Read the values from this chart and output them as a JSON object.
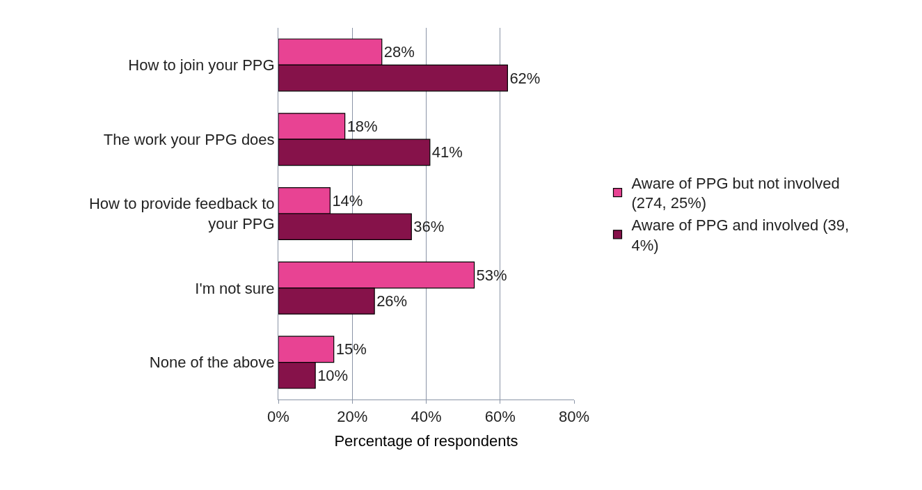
{
  "chart_data": {
    "type": "bar",
    "orientation": "horizontal",
    "xlabel": "Percentage of respondents",
    "categories": [
      "How to join your PPG",
      "The work your PPG does",
      "How to provide feedback to your PPG",
      "I'm not sure",
      "None of the above"
    ],
    "series": [
      {
        "name": "Aware of PPG but not involved (274, 25%)",
        "color": "#e84393",
        "values": [
          28,
          18,
          14,
          53,
          15
        ],
        "value_labels": [
          "28%",
          "18%",
          "14%",
          "53%",
          "15%"
        ]
      },
      {
        "name": "Aware of PPG and involved (39, 4%)",
        "color": "#86124a",
        "values": [
          62,
          41,
          36,
          26,
          10
        ],
        "value_labels": [
          "62%",
          "41%",
          "36%",
          "26%",
          "10%"
        ]
      }
    ],
    "xlim": [
      0,
      80
    ],
    "xticks": [
      {
        "value": 0,
        "label": "0%"
      },
      {
        "value": 20,
        "label": "20%"
      },
      {
        "value": 40,
        "label": "40%"
      },
      {
        "value": 60,
        "label": "60%"
      },
      {
        "value": 80,
        "label": "80%"
      }
    ],
    "grid": "x",
    "legend": "right"
  }
}
